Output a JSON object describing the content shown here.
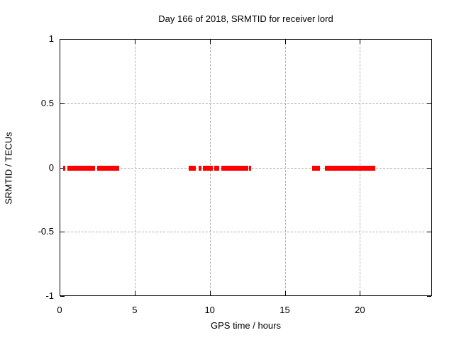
{
  "window": {
    "background": "#ffffff"
  },
  "chart_data": {
    "type": "scatter",
    "title": "Day 166 of 2018, SRMTID for receiver lord",
    "xlabel": "GPS time / hours",
    "ylabel": "SRMTID / TECUs",
    "xlim": [
      0,
      24.8
    ],
    "ylim": [
      -1,
      1
    ],
    "grid": true,
    "legend_position": "none",
    "marker": "plus",
    "colors": {
      "series": "#ff0000",
      "grid": "#b0b0b0",
      "axis": "#000000",
      "text": "#000000"
    },
    "xticks": [
      {
        "value": 0,
        "label": "0"
      },
      {
        "value": 5,
        "label": "5"
      },
      {
        "value": 10,
        "label": "10"
      },
      {
        "value": 15,
        "label": "15"
      },
      {
        "value": 20,
        "label": "20"
      }
    ],
    "yticks": [
      {
        "value": -1,
        "label": "-1"
      },
      {
        "value": -0.5,
        "label": "-0.5"
      },
      {
        "value": 0,
        "label": "0"
      },
      {
        "value": 0.5,
        "label": "0.5"
      },
      {
        "value": 1,
        "label": "1"
      }
    ],
    "series": [
      {
        "name": "SRMTID",
        "color": "#ff0000",
        "y_value": 0,
        "x_segments_hours": [
          [
            0.17,
            0.31
          ],
          [
            0.46,
            2.31
          ],
          [
            2.47,
            3.92
          ],
          [
            8.56,
            9.04
          ],
          [
            9.19,
            9.38
          ],
          [
            9.48,
            10.15
          ],
          [
            10.25,
            10.59
          ],
          [
            10.72,
            12.5
          ],
          [
            12.57,
            12.62
          ],
          [
            16.77,
            17.29
          ],
          [
            17.62,
            20.97
          ]
        ]
      }
    ]
  }
}
